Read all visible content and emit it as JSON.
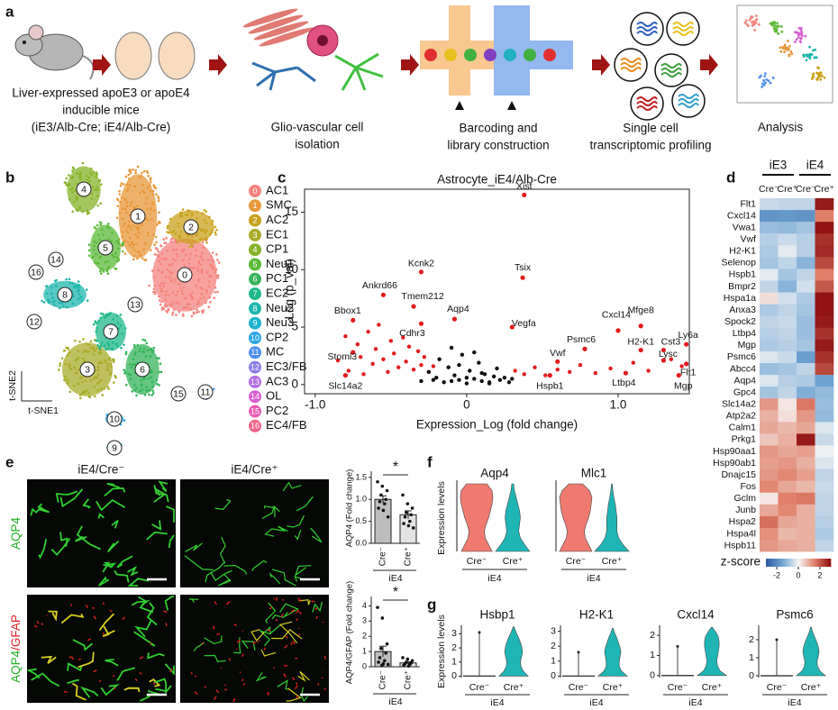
{
  "panel_labels": [
    "a",
    "b",
    "c",
    "d",
    "e",
    "f",
    "g"
  ],
  "a": {
    "steps": [
      [
        "Liver-expressed apoE3 or apoE4",
        "inducible mice",
        "(iE3/Alb-Cre; iE4/Alb-Cre)"
      ],
      [
        "Glio-vascular cell",
        "isolation"
      ],
      [
        "Barcoding and",
        "library construction"
      ],
      [
        "Single cell",
        "transcriptomic profiling"
      ],
      [
        "Analysis"
      ]
    ]
  },
  "b": {
    "x_label": "t-SNE1",
    "y_label": "t-SNE2",
    "clusters": [
      {
        "id": 0,
        "name": "AC1",
        "color": "#f4837d"
      },
      {
        "id": 1,
        "name": "SMC",
        "color": "#e8973a"
      },
      {
        "id": 2,
        "name": "AC2",
        "color": "#c9a31e"
      },
      {
        "id": 3,
        "name": "EC1",
        "color": "#a8ac2a"
      },
      {
        "id": 4,
        "name": "CP1",
        "color": "#86b32a"
      },
      {
        "id": 5,
        "name": "Neu1",
        "color": "#5bba38"
      },
      {
        "id": 6,
        "name": "PC1",
        "color": "#34b35a"
      },
      {
        "id": 7,
        "name": "EC2",
        "color": "#1fb889"
      },
      {
        "id": 8,
        "name": "Neu2",
        "color": "#1fb6ad"
      },
      {
        "id": 9,
        "name": "Neu3",
        "color": "#1fb3cd"
      },
      {
        "id": 10,
        "name": "CP2",
        "color": "#2aa5e6"
      },
      {
        "id": 11,
        "name": "MC",
        "color": "#4e8ef0"
      },
      {
        "id": 12,
        "name": "EC3/FB",
        "color": "#8c7ee8"
      },
      {
        "id": 13,
        "name": "AC3",
        "color": "#b26ee6"
      },
      {
        "id": 14,
        "name": "OL",
        "color": "#d65fd2"
      },
      {
        "id": 15,
        "name": "PC2",
        "color": "#ea5cb0"
      },
      {
        "id": 16,
        "name": "EC4/FB",
        "color": "#f26389"
      }
    ]
  },
  "c": {
    "title": "Astrocyte_iE4/Alb-Cre",
    "x_label": "Expression_Log (fold change)",
    "y_label": "-Log (p_val)",
    "xlim": [
      -1.07,
      1.47
    ],
    "ylim": [
      -0.8,
      17
    ],
    "xticks": [
      {
        "value": -1,
        "label": "-1.0"
      },
      0,
      {
        "value": 1,
        "label": "1.0"
      }
    ],
    "yticks": [
      0,
      5,
      10,
      15
    ],
    "labeled": [
      {
        "name": "Xist",
        "x": 0.38,
        "y": 16.5
      },
      {
        "name": "Kcnk2",
        "x": -0.3,
        "y": 9.8
      },
      {
        "name": "Tsix",
        "x": 0.37,
        "y": 9.3
      },
      {
        "name": "Ankrd66",
        "x": -0.55,
        "y": 7.8
      },
      {
        "name": "Tmem212",
        "x": -0.35,
        "y": 6.8
      },
      {
        "name": "Bbox1",
        "x": -0.75,
        "y": 5.6
      },
      {
        "name": "Cdhr3",
        "x": -0.3,
        "y": 5.3
      },
      {
        "name": "Aqp4",
        "x": -0.08,
        "y": 5.7
      },
      {
        "name": "Vegfa",
        "x": 0.3,
        "y": 5.0
      },
      {
        "name": "Cxcl14",
        "x": 1.0,
        "y": 4.7
      },
      {
        "name": "Mfge8",
        "x": 1.15,
        "y": 5.1
      },
      {
        "name": "Psmc6",
        "x": 0.78,
        "y": 3.1
      },
      {
        "name": "H2-K1",
        "x": 1.15,
        "y": 3.0
      },
      {
        "name": "Cst3",
        "x": 1.3,
        "y": 3.0
      },
      {
        "name": "Ly6a",
        "x": 1.45,
        "y": 3.5
      },
      {
        "name": "Stoml3",
        "x": -0.75,
        "y": 2.8
      },
      {
        "name": "Vwf",
        "x": 0.6,
        "y": 2.0
      },
      {
        "name": "Lysc",
        "x": 1.3,
        "y": 2.1
      },
      {
        "name": "Flt1",
        "x": 1.45,
        "y": 1.8
      },
      {
        "name": "Slc14a2",
        "x": -0.8,
        "y": 0.8
      },
      {
        "name": "Hspb1",
        "x": 0.55,
        "y": 0.8
      },
      {
        "name": "Ltbp4",
        "x": 1.05,
        "y": 1.0
      },
      {
        "name": "Mgp",
        "x": 1.4,
        "y": 0.8
      }
    ],
    "series": [
      {
        "color": "#e41a1c",
        "x": [
          -0.85,
          -0.8,
          -0.78,
          -0.72,
          -0.7,
          -0.68,
          -0.65,
          -0.62,
          -0.6,
          -0.58,
          -0.55,
          -0.52,
          -0.5,
          -0.48,
          -0.45,
          -0.42,
          -0.4,
          -0.38,
          -0.35,
          -0.32,
          -0.3,
          -0.28,
          -0.25,
          -0.22,
          0.32,
          0.38,
          0.45,
          0.52,
          0.6,
          0.68,
          0.75,
          0.85,
          0.95,
          1.1,
          1.2,
          1.35,
          1.42
        ],
        "y": [
          2.1,
          4.2,
          1.2,
          3.5,
          2.4,
          0.9,
          4.6,
          1.8,
          3.1,
          5.2,
          2.2,
          1.1,
          3.8,
          2.7,
          1.5,
          4.1,
          2.0,
          3.3,
          1.3,
          2.9,
          1.7,
          2.4,
          1.1,
          1.6,
          1.2,
          0.9,
          1.5,
          0.8,
          1.3,
          1.1,
          1.7,
          1.0,
          1.4,
          1.9,
          1.2,
          2.2,
          1.6
        ]
      },
      {
        "color": "#111111",
        "x": [
          -0.3,
          -0.25,
          -0.2,
          -0.18,
          -0.15,
          -0.12,
          -0.1,
          -0.08,
          -0.05,
          -0.03,
          0,
          0.02,
          0.05,
          0.08,
          0.1,
          0.12,
          0.15,
          0.18,
          0.2,
          0.22,
          0.25,
          0.28,
          0.3,
          -0.22,
          -0.1,
          0.05,
          0.15,
          0.0,
          -0.05,
          0.1
        ],
        "y": [
          0.3,
          1.1,
          0.6,
          2.2,
          0.2,
          1.5,
          3.2,
          0.8,
          0.4,
          2.6,
          0.1,
          1.2,
          0.5,
          1.9,
          0.3,
          0.9,
          0.2,
          0.7,
          1.4,
          0.4,
          0.6,
          0.2,
          0.5,
          0.4,
          0.3,
          2.8,
          0.1,
          0.6,
          1.7,
          1.0
        ]
      }
    ]
  },
  "d": {
    "groups": [
      "iE3",
      "iE4"
    ],
    "columns": [
      "Cre⁻",
      "Cre⁺",
      "Cre⁻",
      "Cre⁺"
    ],
    "genes": [
      "Flt1",
      "Cxcl14",
      "Vwa1",
      "Vwf",
      "H2-K1",
      "Selenop",
      "Hspb1",
      "Bmpr2",
      "Hspa1a",
      "Anxa3",
      "Spock2",
      "Ltbp4",
      "Mgp",
      "Psmc6",
      "Abcc4",
      "Aqp4",
      "Gpc4",
      "Slc14a2",
      "Atp2a2",
      "Calm1",
      "Prkg1",
      "Hsp90aa1",
      "Hsp90ab1",
      "Dnajc15",
      "Fos",
      "Gclm",
      "Junb",
      "Hspa2",
      "Hspa4l",
      "Hspb11"
    ],
    "values": [
      [
        -0.5,
        -0.6,
        -0.6,
        2.8
      ],
      [
        -1.8,
        -1.7,
        -1.8,
        1.5
      ],
      [
        -1,
        -1.1,
        -0.9,
        2.9
      ],
      [
        -0.7,
        -0.5,
        -0.7,
        2.5
      ],
      [
        -0.8,
        -0.2,
        -0.7,
        2.6
      ],
      [
        -0.9,
        -0.6,
        -1.2,
        2.2
      ],
      [
        -0.2,
        -0.9,
        -0.6,
        1.5
      ],
      [
        -0.6,
        -1.2,
        -0.4,
        2.0
      ],
      [
        0.3,
        -0.4,
        -0.8,
        2.9
      ],
      [
        -0.8,
        -0.6,
        -0.9,
        2.9
      ],
      [
        -0.6,
        -0.5,
        -1.0,
        2.8
      ],
      [
        -0.7,
        -0.6,
        -1.0,
        2.5
      ],
      [
        -0.8,
        -0.7,
        -0.9,
        2.8
      ],
      [
        -0.3,
        -0.5,
        -1.6,
        2.5
      ],
      [
        -1.0,
        -0.9,
        -0.6,
        2.2
      ],
      [
        -0.3,
        -0.7,
        -0.8,
        -1.5
      ],
      [
        -0.9,
        -0.6,
        -1.3,
        -1.1
      ],
      [
        1.2,
        0.2,
        1.6,
        -1.0
      ],
      [
        0.9,
        0.3,
        1.2,
        -1.1
      ],
      [
        1.0,
        0.8,
        1.0,
        -0.3
      ],
      [
        0.6,
        0.9,
        2.8,
        -0.5
      ],
      [
        1.2,
        1.0,
        1.1,
        -0.1
      ],
      [
        1.1,
        1.2,
        0.9,
        -0.3
      ],
      [
        1.2,
        1.4,
        1.1,
        -0.6
      ],
      [
        1.4,
        1.0,
        0.8,
        -0.5
      ],
      [
        0.2,
        1.5,
        1.6,
        -0.6
      ],
      [
        1.0,
        1.4,
        0.9,
        -0.6
      ],
      [
        1.7,
        1.0,
        0.9,
        -0.7
      ],
      [
        1.3,
        0.8,
        0.9,
        -0.8
      ],
      [
        1.2,
        1.0,
        0.9,
        -0.6
      ]
    ],
    "colorbar": {
      "label": "z-score",
      "lim": [
        -3,
        3
      ],
      "ticks": [
        -2,
        0,
        2
      ]
    }
  },
  "e": {
    "columns": [
      "iE4/Cre⁻",
      "iE4/Cre⁺"
    ],
    "rows": [
      [
        "AQP4"
      ],
      [
        "AQP4",
        "/GFAP"
      ]
    ],
    "bar_charts": [
      {
        "y_label": "AQP4 (Fold change)",
        "ylim": [
          0,
          1.6
        ],
        "yticks": [
          {
            "value": 0,
            "label": "0.0"
          },
          {
            "value": 0.5,
            "label": "0.5"
          },
          {
            "value": 1,
            "label": "1.0"
          },
          {
            "value": 1.5,
            "label": "1.5"
          }
        ],
        "categories": [
          "Cre⁻",
          "Cre⁺"
        ],
        "group": "iE4",
        "significance": "*",
        "values": [
          1.0,
          0.65
        ],
        "errors": [
          0.08,
          0.09
        ],
        "points": [
          [
            1.4,
            1.3,
            1.2,
            1.1,
            1.0,
            0.95,
            0.9,
            0.8,
            0.75,
            0.6
          ],
          [
            1.1,
            0.9,
            0.8,
            0.7,
            0.65,
            0.6,
            0.5,
            0.45,
            0.4,
            0.35
          ]
        ]
      },
      {
        "y_label": "AQP4/GFAP (Fold change)",
        "ylim": [
          0,
          4.5
        ],
        "yticks": [
          0,
          1,
          2,
          3,
          4
        ],
        "categories": [
          "Cre⁻",
          "Cre⁺"
        ],
        "group": "iE4",
        "significance": "*",
        "values": [
          1.0,
          0.25
        ],
        "errors": [
          0.35,
          0.07
        ],
        "points": [
          [
            3.9,
            3.2,
            1.5,
            1.2,
            0.9,
            0.6,
            0.4,
            0.3,
            0.2,
            0.15,
            0.1
          ],
          [
            0.6,
            0.5,
            0.4,
            0.3,
            0.25,
            0.2,
            0.15,
            0.1,
            0.05
          ]
        ]
      }
    ]
  },
  "f": {
    "y_label": "Expression levels",
    "group": "iE4",
    "categories": [
      "Cre⁻",
      "Cre⁺"
    ],
    "colors": [
      "#f07a70",
      "#20b5b5"
    ],
    "plots": [
      {
        "title": "Aqp4",
        "density": [
          [
            0.9,
            0.7,
            0.5,
            0.45,
            0.55,
            0.7,
            0.8,
            0.9,
            0.95,
            0.9,
            0.6
          ],
          [
            1,
            0.7,
            0.45,
            0.35,
            0.4,
            0.45,
            0.4,
            0.3,
            0.2,
            0.1,
            0.05
          ]
        ]
      },
      {
        "title": "Mlc1",
        "density": [
          [
            0.95,
            0.75,
            0.55,
            0.5,
            0.6,
            0.75,
            0.85,
            0.9,
            0.95,
            0.8,
            0.4
          ],
          [
            1,
            0.65,
            0.4,
            0.3,
            0.3,
            0.3,
            0.25,
            0.2,
            0.12,
            0.06,
            0.02
          ]
        ]
      }
    ]
  },
  "g": {
    "y_label": "Expression levels",
    "group": "iE4",
    "categories": [
      "Cre⁻",
      "Cre⁺"
    ],
    "colors": [
      "#f07a70",
      "#20b5b5"
    ],
    "plots": [
      {
        "title": "Hsbp1",
        "ylim": [
          -0.1,
          3.6
        ],
        "yticks": [
          0,
          1,
          2,
          3
        ],
        "cre_minus_max": 3.1,
        "cre_plus_max": 3.5,
        "density": [
          0.9,
          0.6,
          0.45,
          0.42,
          0.5,
          0.55,
          0.5,
          0.4,
          0.28,
          0.14,
          0.02
        ]
      },
      {
        "title": "H2-K1",
        "ylim": [
          -0.1,
          3.4
        ],
        "yticks": [
          0,
          1,
          2,
          3
        ],
        "cre_minus_max": 1.6,
        "cre_plus_max": 3.2,
        "density": [
          0.9,
          0.55,
          0.4,
          0.4,
          0.45,
          0.5,
          0.45,
          0.35,
          0.25,
          0.12,
          0.02
        ]
      },
      {
        "title": "Cxcl14",
        "ylim": [
          -0.1,
          2.5
        ],
        "yticks": [
          0,
          1,
          2
        ],
        "cre_minus_max": 1.45,
        "cre_plus_max": 2.4,
        "density": [
          0.9,
          0.5,
          0.35,
          0.3,
          0.35,
          0.4,
          0.45,
          0.45,
          0.4,
          0.25,
          0.03
        ]
      },
      {
        "title": "Psmc6",
        "ylim": [
          -0.1,
          2.8
        ],
        "yticks": [
          0,
          1,
          2
        ],
        "cre_minus_max": 2.0,
        "cre_plus_max": 2.7,
        "density": [
          0.9,
          0.55,
          0.4,
          0.38,
          0.45,
          0.5,
          0.45,
          0.35,
          0.22,
          0.1,
          0.02
        ]
      }
    ]
  }
}
